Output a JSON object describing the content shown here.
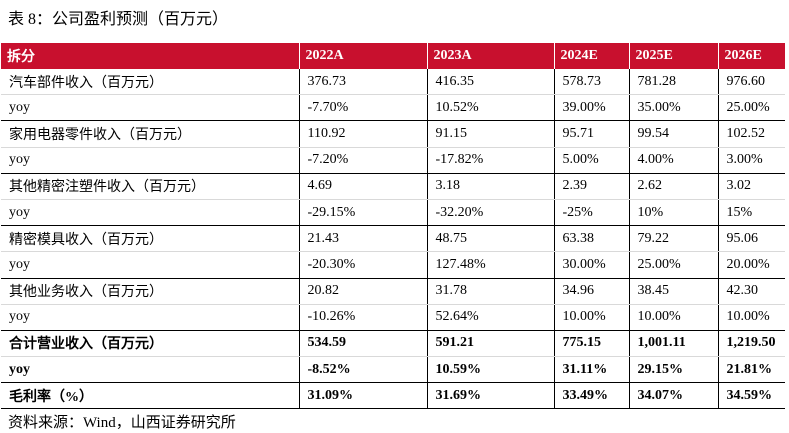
{
  "caption": "表 8：公司盈利预测（百万元）",
  "headers": [
    "拆分",
    "2022A",
    "2023A",
    "2024E",
    "2025E",
    "2026E"
  ],
  "rows": [
    {
      "label": "汽车部件收入（百万元）",
      "values": [
        "376.73",
        "416.35",
        "578.73",
        "781.28",
        "976.60"
      ]
    },
    {
      "label": "yoy",
      "values": [
        "-7.70%",
        "10.52%",
        "39.00%",
        "35.00%",
        "25.00%"
      ]
    },
    {
      "label": "家用电器零件收入（百万元）",
      "values": [
        "110.92",
        "91.15",
        "95.71",
        "99.54",
        "102.52"
      ]
    },
    {
      "label": "yoy",
      "values": [
        "-7.20%",
        "-17.82%",
        "5.00%",
        "4.00%",
        "3.00%"
      ]
    },
    {
      "label": "其他精密注塑件收入（百万元）",
      "values": [
        "4.69",
        "3.18",
        "2.39",
        "2.62",
        "3.02"
      ]
    },
    {
      "label": "yoy",
      "values": [
        "-29.15%",
        "-32.20%",
        "-25%",
        "10%",
        "15%"
      ]
    },
    {
      "label": "精密模具收入（百万元）",
      "values": [
        "21.43",
        "48.75",
        "63.38",
        "79.22",
        "95.06"
      ]
    },
    {
      "label": "yoy",
      "values": [
        "-20.30%",
        "127.48%",
        "30.00%",
        "25.00%",
        "20.00%"
      ]
    },
    {
      "label": "其他业务收入（百万元）",
      "values": [
        "20.82",
        "31.78",
        "34.96",
        "38.45",
        "42.30"
      ]
    },
    {
      "label": "yoy",
      "values": [
        "-10.26%",
        "52.64%",
        "10.00%",
        "10.00%",
        "10.00%"
      ]
    },
    {
      "label": "合计营业收入（百万元）",
      "values": [
        "534.59",
        "591.21",
        "775.15",
        "1,001.11",
        "1,219.50"
      ]
    },
    {
      "label": "yoy",
      "values": [
        "-8.52%",
        "10.59%",
        "31.11%",
        "29.15%",
        "21.81%"
      ]
    },
    {
      "label": "毛利率（%）",
      "values": [
        "31.09%",
        "31.69%",
        "33.49%",
        "34.07%",
        "34.59%"
      ]
    }
  ],
  "source": "资料来源：Wind，山西证券研究所"
}
